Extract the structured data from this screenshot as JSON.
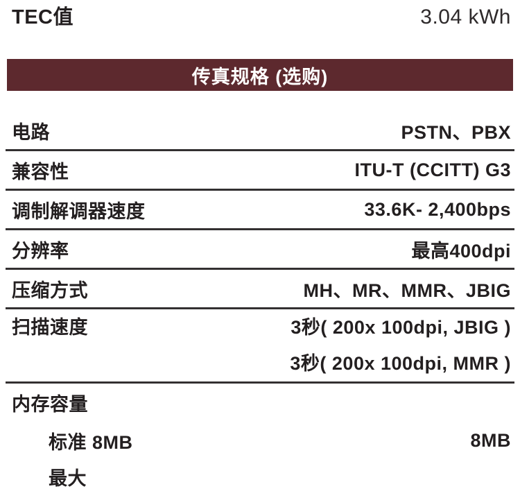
{
  "colors": {
    "accent_maroon": "#5d292e",
    "divider": "#333031",
    "text": "#231f20",
    "header_text": "#ffffff",
    "background": "#ffffff"
  },
  "tec_row": {
    "label": "TEC值",
    "value": "3.04 kWh"
  },
  "section": {
    "title": "传真规格 (选购)"
  },
  "table": {
    "rows": [
      {
        "label": "电路",
        "values": [
          "PSTN、PBX"
        ]
      },
      {
        "label": "兼容性",
        "values": [
          "ITU-T (CCITT) G3"
        ]
      },
      {
        "label": "调制解调器速度",
        "values": [
          "33.6K- 2,400bps"
        ]
      },
      {
        "label": "分辨率",
        "values": [
          "最高400dpi"
        ]
      },
      {
        "label": "压缩方式",
        "values": [
          "MH、MR、MMR、JBIG"
        ]
      },
      {
        "label": "扫描速度",
        "values": [
          "3秒( 200x 100dpi, JBIG )",
          "3秒( 200x 100dpi, MMR )"
        ]
      },
      {
        "label": "内存容量",
        "values": []
      },
      {
        "label": "标准 8MB",
        "values": [
          "8MB"
        ]
      },
      {
        "label": "最大",
        "values": []
      }
    ]
  }
}
